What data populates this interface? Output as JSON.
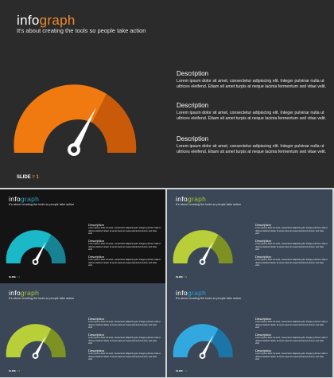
{
  "brand": {
    "part1": "info",
    "part2": "graph"
  },
  "subtitle": "It's about creating the tools so people take action",
  "descriptions": [
    {
      "title": "Description",
      "body": "Lorem ipsum dolor sit amet, consectetur adipiscing elit. Integer pulvinar nulla ut ultrices eleifend. Etiam sit amet turpis at neque lacinia fermentum sed vitae velit."
    },
    {
      "title": "Description",
      "body": "Lorem ipsum dolor sit amet, consectetur adipiscing elit. Integer pulvinar nulla ut ultrices eleifend. Etiam sit amet turpis at neque lacinia fermentum sed vitae velit."
    },
    {
      "title": "Description",
      "body": "Lorem ipsum dolor sit amet, consectetur adipiscing elit. Integer pulvinar nulla ut ultrices eleifend. Etiam sit amet turpis at neque lacinia fermentum sed vitae velit."
    }
  ],
  "slide_label": "SLIDE",
  "slide_sep": "=",
  "slide_number": "1",
  "variants": [
    {
      "background": "#2b2b2b",
      "accent": "#f08a2c",
      "gauge_light": "#f07a10",
      "gauge_dark": "#c85a0a"
    },
    {
      "background": "#141414",
      "accent": "#27a9bf",
      "gauge_light": "#1bb8c8",
      "gauge_dark": "#168293"
    },
    {
      "background": "#3b4756",
      "accent": "#a7c43b",
      "gauge_light": "#b9cf3a",
      "gauge_dark": "#7d9222"
    },
    {
      "background": "#3b4756",
      "accent": "#a7c43b",
      "gauge_light": "#b9cf3a",
      "gauge_dark": "#7d9222"
    },
    {
      "background": "#3b4756",
      "accent": "#2b9fd6",
      "gauge_light": "#33a8e0",
      "gauge_dark": "#1b75a6"
    }
  ]
}
